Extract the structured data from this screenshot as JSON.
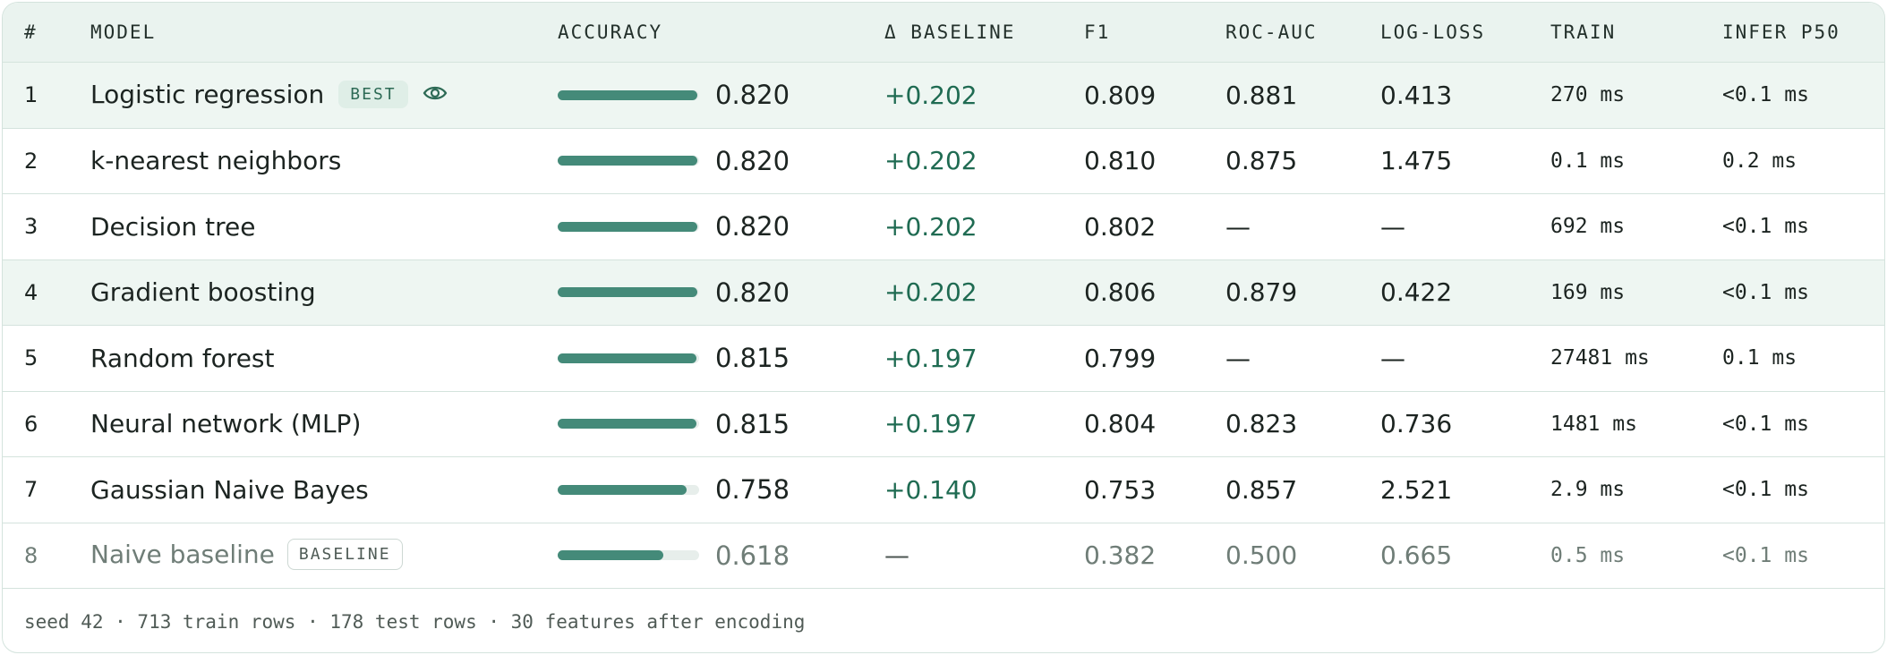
{
  "columns": {
    "rank": "#",
    "model": "MODEL",
    "accuracy": "ACCURACY",
    "delta": "Δ BASELINE",
    "f1": "F1",
    "roc_auc": "ROC-AUC",
    "log_loss": "LOG-LOSS",
    "train": "TRAIN",
    "infer": "INFER P50"
  },
  "badges": {
    "best": "BEST",
    "baseline": "BASELINE"
  },
  "rows": [
    {
      "rank": "1",
      "model": "Logistic regression",
      "accuracy": "0.820",
      "acc_fraction": 0.82,
      "delta": "+0.202",
      "f1": "0.809",
      "roc_auc": "0.881",
      "log_loss": "0.413",
      "train": "270 ms",
      "infer": "<0.1 ms"
    },
    {
      "rank": "2",
      "model": "k-nearest neighbors",
      "accuracy": "0.820",
      "acc_fraction": 0.82,
      "delta": "+0.202",
      "f1": "0.810",
      "roc_auc": "0.875",
      "log_loss": "1.475",
      "train": "0.1 ms",
      "infer": "0.2 ms"
    },
    {
      "rank": "3",
      "model": "Decision tree",
      "accuracy": "0.820",
      "acc_fraction": 0.82,
      "delta": "+0.202",
      "f1": "0.802",
      "roc_auc": "—",
      "log_loss": "—",
      "train": "692 ms",
      "infer": "<0.1 ms"
    },
    {
      "rank": "4",
      "model": "Gradient boosting",
      "accuracy": "0.820",
      "acc_fraction": 0.82,
      "delta": "+0.202",
      "f1": "0.806",
      "roc_auc": "0.879",
      "log_loss": "0.422",
      "train": "169 ms",
      "infer": "<0.1 ms"
    },
    {
      "rank": "5",
      "model": "Random forest",
      "accuracy": "0.815",
      "acc_fraction": 0.815,
      "delta": "+0.197",
      "f1": "0.799",
      "roc_auc": "—",
      "log_loss": "—",
      "train": "27481 ms",
      "infer": "0.1 ms"
    },
    {
      "rank": "6",
      "model": "Neural network (MLP)",
      "accuracy": "0.815",
      "acc_fraction": 0.815,
      "delta": "+0.197",
      "f1": "0.804",
      "roc_auc": "0.823",
      "log_loss": "0.736",
      "train": "1481 ms",
      "infer": "<0.1 ms"
    },
    {
      "rank": "7",
      "model": "Gaussian Naive Bayes",
      "accuracy": "0.758",
      "acc_fraction": 0.758,
      "delta": "+0.140",
      "f1": "0.753",
      "roc_auc": "0.857",
      "log_loss": "2.521",
      "train": "2.9 ms",
      "infer": "<0.1 ms"
    },
    {
      "rank": "8",
      "model": "Naive baseline",
      "accuracy": "0.618",
      "acc_fraction": 0.618,
      "delta": "—",
      "f1": "0.382",
      "roc_auc": "0.500",
      "log_loss": "0.665",
      "train": "0.5 ms",
      "infer": "<0.1 ms"
    }
  ],
  "footer": "seed 42 · 713 train rows · 178 test rows · 30 features after encoding",
  "icons": {
    "best_row": "eye-icon"
  },
  "colors": {
    "accent": "#448a79",
    "delta": "#1f6b52",
    "highlight_row": "#eef6f2",
    "header_bg": "#eaf3ef"
  }
}
